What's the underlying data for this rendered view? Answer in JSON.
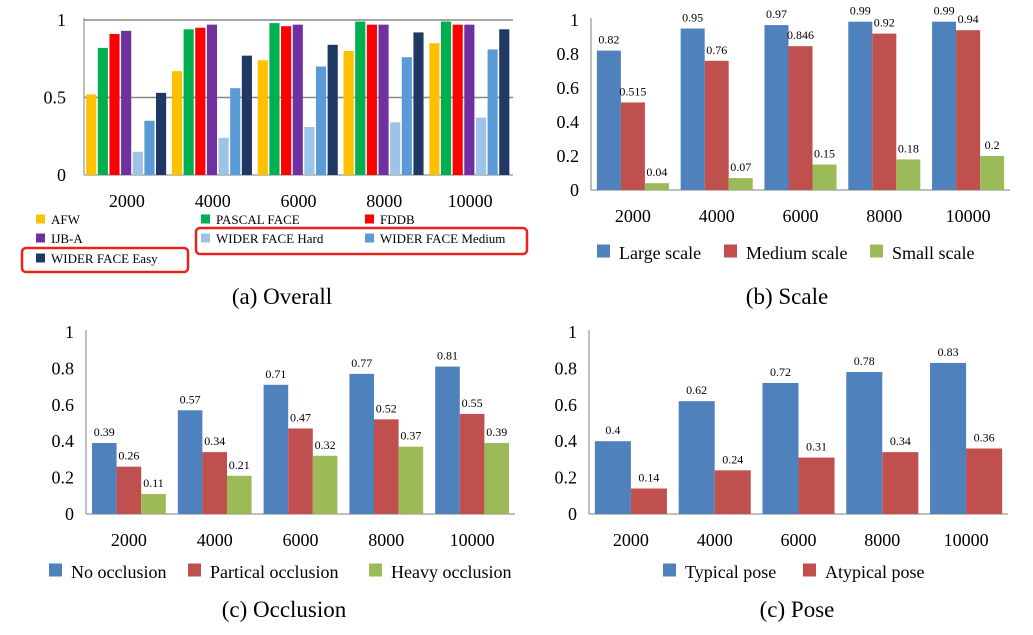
{
  "charts": [
    {
      "type": "bar",
      "caption": "(a) Overall",
      "categories": [
        "2000",
        "4000",
        "6000",
        "8000",
        "10000"
      ],
      "yticks": [
        "0",
        "0.5",
        "1"
      ],
      "ylim": [
        0,
        1
      ],
      "grid": true,
      "data_labels": false,
      "legend_style": "small",
      "series": [
        {
          "name": "AFW",
          "color": "#FFC000",
          "values": [
            0.52,
            0.67,
            0.74,
            0.8,
            0.85
          ]
        },
        {
          "name": "PASCAL FACE",
          "color": "#00B050",
          "values": [
            0.82,
            0.94,
            0.98,
            0.99,
            0.99
          ]
        },
        {
          "name": "FDDB",
          "color": "#FF0000",
          "values": [
            0.91,
            0.95,
            0.96,
            0.97,
            0.97
          ]
        },
        {
          "name": "IJB-A",
          "color": "#7030A0",
          "values": [
            0.93,
            0.97,
            0.97,
            0.97,
            0.97
          ]
        },
        {
          "name": "WIDER FACE Hard",
          "color": "#9DC3E6",
          "values": [
            0.15,
            0.24,
            0.31,
            0.34,
            0.37
          ]
        },
        {
          "name": "WIDER FACE Medium",
          "color": "#5B9BD5",
          "values": [
            0.35,
            0.56,
            0.7,
            0.76,
            0.81
          ]
        },
        {
          "name": "WIDER FACE Easy",
          "color": "#1F3864",
          "values": [
            0.53,
            0.77,
            0.84,
            0.92,
            0.94
          ]
        }
      ]
    },
    {
      "type": "bar",
      "caption": "(b) Scale",
      "categories": [
        "2000",
        "4000",
        "6000",
        "8000",
        "10000"
      ],
      "yticks": [
        "0",
        "0.2",
        "0.4",
        "0.6",
        "0.8",
        "1"
      ],
      "ylim": [
        0,
        1
      ],
      "grid": false,
      "data_labels": true,
      "legend_style": "row",
      "series": [
        {
          "name": "Large scale",
          "color": "#4F81BD",
          "values": [
            0.82,
            0.95,
            0.97,
            0.99,
            0.99
          ],
          "labels": [
            "0.82",
            "0.95",
            "0.97",
            "0.99",
            "0.99"
          ]
        },
        {
          "name": "Medium scale",
          "color": "#C0504D",
          "values": [
            0.515,
            0.76,
            0.846,
            0.92,
            0.94
          ],
          "labels": [
            "0.515",
            "0.76",
            "0.846",
            "0.92",
            "0.94"
          ]
        },
        {
          "name": "Small scale",
          "color": "#9BBB59",
          "values": [
            0.04,
            0.07,
            0.15,
            0.18,
            0.2
          ],
          "labels": [
            "0.04",
            "0.07",
            "0.15",
            "0.18",
            "0.2"
          ]
        }
      ]
    },
    {
      "type": "bar",
      "caption": "(c) Occlusion",
      "categories": [
        "2000",
        "4000",
        "6000",
        "8000",
        "10000"
      ],
      "yticks": [
        "0",
        "0.2",
        "0.4",
        "0.6",
        "0.8",
        "1"
      ],
      "ylim": [
        0,
        1
      ],
      "grid": false,
      "data_labels": true,
      "legend_style": "row",
      "series": [
        {
          "name": "No occlusion",
          "color": "#4F81BD",
          "values": [
            0.39,
            0.57,
            0.71,
            0.77,
            0.81
          ],
          "labels": [
            "0.39",
            "0.57",
            "0.71",
            "0.77",
            "0.81"
          ]
        },
        {
          "name": "Partical occlusion",
          "color": "#C0504D",
          "values": [
            0.26,
            0.34,
            0.47,
            0.52,
            0.55
          ],
          "labels": [
            "0.26",
            "0.34",
            "0.47",
            "0.52",
            "0.55"
          ]
        },
        {
          "name": "Heavy occlusion",
          "color": "#9BBB59",
          "values": [
            0.11,
            0.21,
            0.32,
            0.37,
            0.39
          ],
          "labels": [
            "0.11",
            "0.21",
            "0.32",
            "0.37",
            "0.39"
          ]
        }
      ]
    },
    {
      "type": "bar",
      "caption": "(c) Pose",
      "categories": [
        "2000",
        "4000",
        "6000",
        "8000",
        "10000"
      ],
      "yticks": [
        "0",
        "0.2",
        "0.4",
        "0.6",
        "0.8",
        "1"
      ],
      "ylim": [
        0,
        1
      ],
      "grid": false,
      "data_labels": true,
      "legend_style": "row",
      "series": [
        {
          "name": "Typical pose",
          "color": "#4F81BD",
          "values": [
            0.4,
            0.62,
            0.72,
            0.78,
            0.83
          ],
          "labels": [
            "0.4",
            "0.62",
            "0.72",
            "0.78",
            "0.83"
          ]
        },
        {
          "name": "Atypical pose",
          "color": "#C0504D",
          "values": [
            0.14,
            0.24,
            0.31,
            0.34,
            0.36
          ],
          "labels": [
            "0.14",
            "0.24",
            "0.31",
            "0.34",
            "0.36"
          ]
        }
      ]
    }
  ],
  "highlight_color": "#E8231B"
}
